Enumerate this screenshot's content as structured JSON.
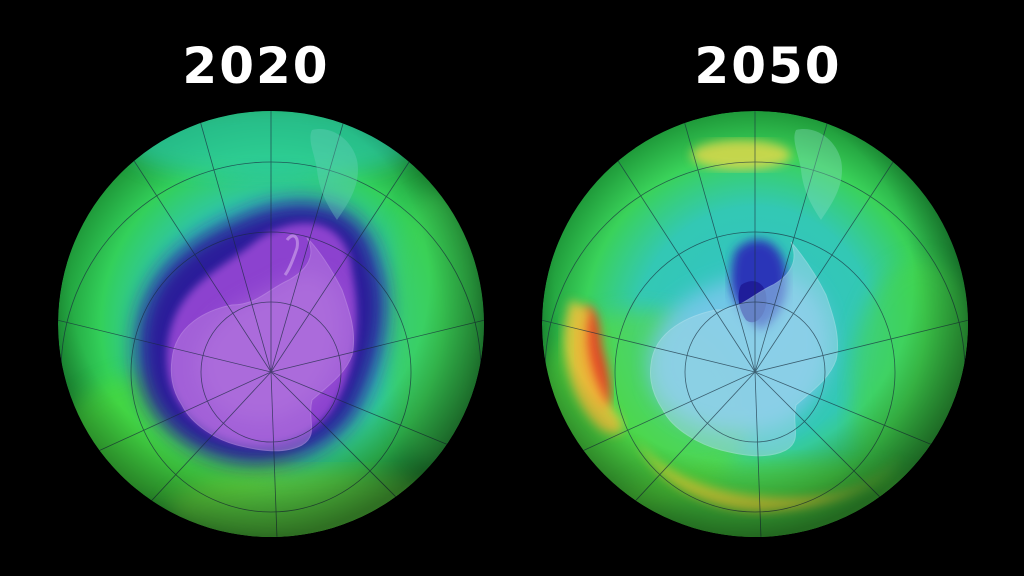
{
  "panels": [
    {
      "year": "2020"
    },
    {
      "year": "2050"
    }
  ],
  "colors": {
    "background": "#000000",
    "title": "#ffffff",
    "ozone_low": "#2a0f8f",
    "ozone_very_low": "#9b4fd0",
    "ozone_mid": "#27c3d6",
    "ozone_high": "#3cdc3a",
    "ozone_very_high": "#e8e13a",
    "ozone_peak": "#e5502a"
  },
  "icons": [
    "globe-ozone-map-2020",
    "globe-ozone-map-2050"
  ]
}
